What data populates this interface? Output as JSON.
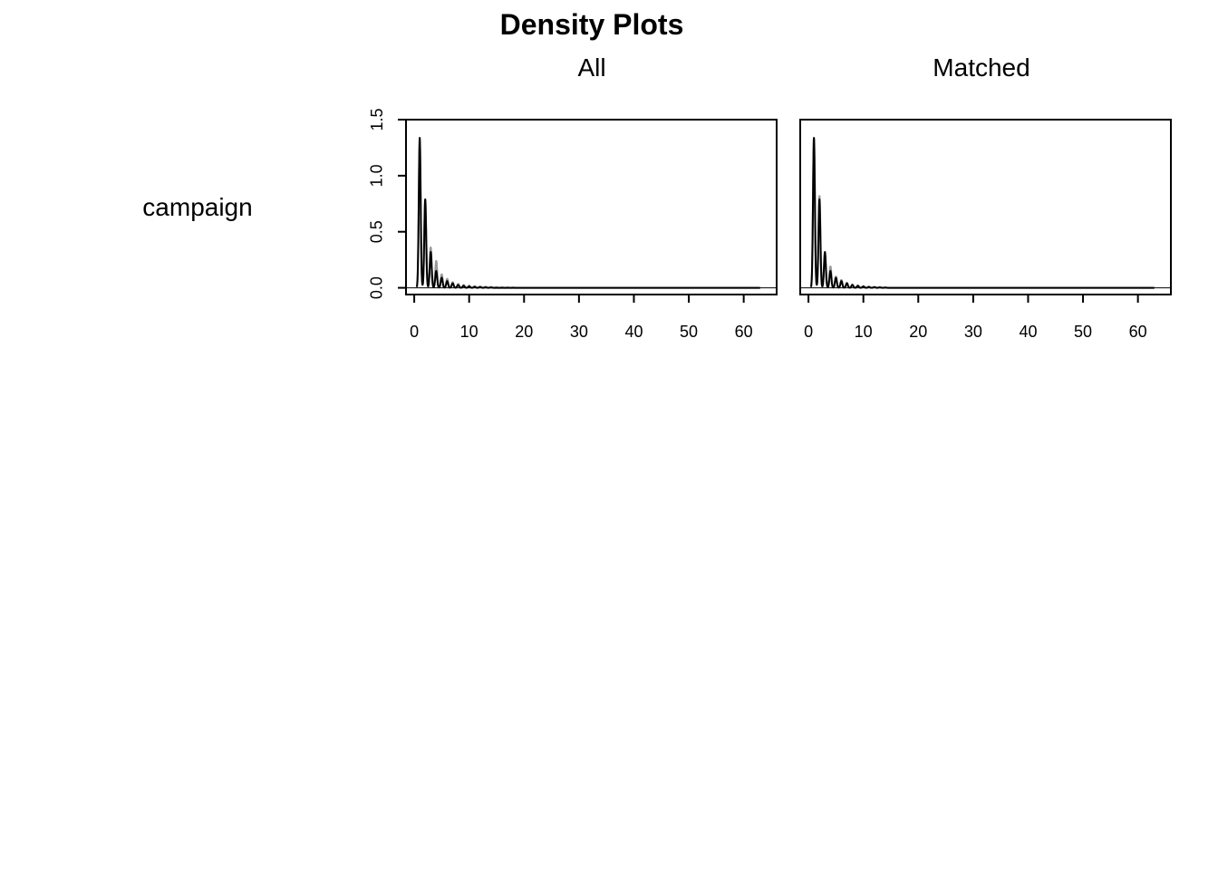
{
  "chart_data": {
    "type": "line",
    "title": "Density Plots",
    "row_label": "campaign",
    "grid": false,
    "legend": "none",
    "colors": {
      "treated": "#000000",
      "control": "#9a9a9a",
      "frame": "#000000"
    },
    "panels": [
      {
        "title": "All",
        "xlim": [
          -1.5,
          66
        ],
        "ylim": [
          -0.06,
          1.5
        ],
        "x_ticks": [
          0,
          10,
          20,
          30,
          40,
          50,
          60
        ],
        "y_ticks": [
          "0.0",
          "0.5",
          "1.0",
          "1.5"
        ],
        "series": [
          {
            "key": "control",
            "bandwidth": 0.17,
            "spikes": [
              [
                1,
                1.3
              ],
              [
                2,
                0.78
              ],
              [
                3,
                0.36
              ],
              [
                4,
                0.24
              ],
              [
                5,
                0.12
              ],
              [
                6,
                0.08
              ],
              [
                7,
                0.05
              ],
              [
                8,
                0.035
              ],
              [
                9,
                0.025
              ],
              [
                10,
                0.02
              ],
              [
                11,
                0.015
              ],
              [
                12,
                0.012
              ],
              [
                13,
                0.01
              ],
              [
                14,
                0.008
              ],
              [
                15,
                0.006
              ],
              [
                16,
                0.005
              ],
              [
                17,
                0.004
              ],
              [
                18,
                0.003
              ]
            ],
            "x_end": 63
          },
          {
            "key": "treated",
            "bandwidth": 0.17,
            "spikes": [
              [
                1,
                1.34
              ],
              [
                2,
                0.79
              ],
              [
                3,
                0.32
              ],
              [
                4,
                0.15
              ],
              [
                5,
                0.09
              ],
              [
                6,
                0.06
              ],
              [
                7,
                0.04
              ],
              [
                8,
                0.025
              ],
              [
                9,
                0.018
              ],
              [
                10,
                0.012
              ],
              [
                11,
                0.008
              ],
              [
                12,
                0.006
              ],
              [
                13,
                0.004
              ],
              [
                14,
                0.003
              ]
            ],
            "x_end": 63
          }
        ]
      },
      {
        "title": "Matched",
        "xlim": [
          -1.5,
          66
        ],
        "ylim": [
          -0.06,
          1.5
        ],
        "x_ticks": [
          0,
          10,
          20,
          30,
          40,
          50,
          60
        ],
        "y_ticks": [],
        "series": [
          {
            "key": "control",
            "bandwidth": 0.17,
            "spikes": [
              [
                1,
                1.33
              ],
              [
                2,
                0.82
              ],
              [
                3,
                0.3
              ],
              [
                4,
                0.19
              ],
              [
                5,
                0.1
              ],
              [
                6,
                0.07
              ],
              [
                7,
                0.045
              ],
              [
                8,
                0.03
              ],
              [
                9,
                0.02
              ],
              [
                10,
                0.014
              ],
              [
                11,
                0.01
              ],
              [
                12,
                0.007
              ],
              [
                13,
                0.005
              ]
            ],
            "x_end": 63
          },
          {
            "key": "treated",
            "bandwidth": 0.17,
            "spikes": [
              [
                1,
                1.34
              ],
              [
                2,
                0.79
              ],
              [
                3,
                0.32
              ],
              [
                4,
                0.15
              ],
              [
                5,
                0.09
              ],
              [
                6,
                0.06
              ],
              [
                7,
                0.04
              ],
              [
                8,
                0.025
              ],
              [
                9,
                0.018
              ],
              [
                10,
                0.012
              ],
              [
                11,
                0.008
              ],
              [
                12,
                0.006
              ],
              [
                13,
                0.004
              ],
              [
                14,
                0.003
              ]
            ],
            "x_end": 63
          }
        ]
      }
    ]
  }
}
